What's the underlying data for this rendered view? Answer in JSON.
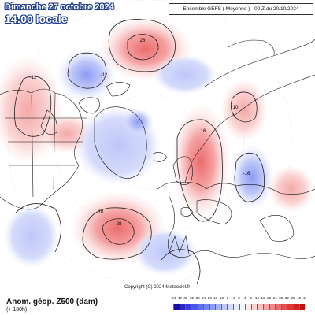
{
  "header": {
    "date": "Dimanche 27 octobre 2024",
    "time": "14:00 locale",
    "run": "Ensemble GEFS ( Moyenne ) - 00 Z du 20/10/2024"
  },
  "footer": {
    "title": "Anom. géop. Z500 (dam)",
    "lead": "(+ 180h)",
    "copyright": "Copyright (C) 2024 Meteociel.fr"
  },
  "map": {
    "contour_labels": [
      "28",
      "-12",
      "-12",
      "10",
      "28",
      "10",
      "16",
      "-16"
    ]
  },
  "scale": {
    "labels": [
      "-44",
      "-40",
      "-36",
      "-32",
      "-28",
      "-24",
      "-20",
      "-16",
      "-12",
      "-8",
      "-4",
      "0",
      "4",
      "8",
      "12",
      "16",
      "20",
      "24",
      "28",
      "32",
      "36",
      "40",
      "44"
    ],
    "colors": [
      "#1e0e9e",
      "#2c25c2",
      "#3a3bd9",
      "#4b55e6",
      "#5d6ef0",
      "#7385f2",
      "#8c9cf4",
      "#a6b2f7",
      "#bfc7f9",
      "#d5dbfb",
      "#e8ecfd",
      "#f4f6fe",
      "#fde8e8",
      "#fbd3d3",
      "#f8bcbc",
      "#f5a2a2",
      "#f18888",
      "#ec6c6c",
      "#e55151",
      "#dd3838",
      "#d22222",
      "#c21111"
    ]
  }
}
